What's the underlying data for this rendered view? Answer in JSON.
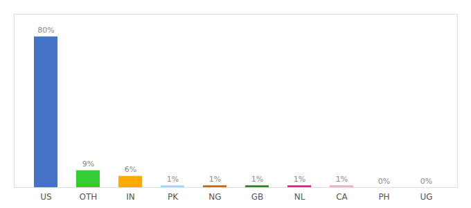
{
  "chart_data": {
    "type": "bar",
    "categories": [
      "US",
      "OTH",
      "IN",
      "PK",
      "NG",
      "GB",
      "NL",
      "CA",
      "PH",
      "UG"
    ],
    "values": [
      80,
      9,
      6,
      1,
      1,
      1,
      1,
      1,
      0,
      0
    ],
    "value_labels": [
      "80%",
      "9%",
      "6%",
      "1%",
      "1%",
      "1%",
      "1%",
      "1%",
      "0%",
      "0%"
    ],
    "colors": [
      "#4472c4",
      "#33cc33",
      "#ffaa00",
      "#99ddff",
      "#cc6600",
      "#228822",
      "#ff1493",
      "#ffaacc",
      "#eeeeee",
      "#eeeeee"
    ],
    "ylim": [
      0,
      92
    ],
    "data_labels": true,
    "tick_labels": "x",
    "grid": false
  }
}
